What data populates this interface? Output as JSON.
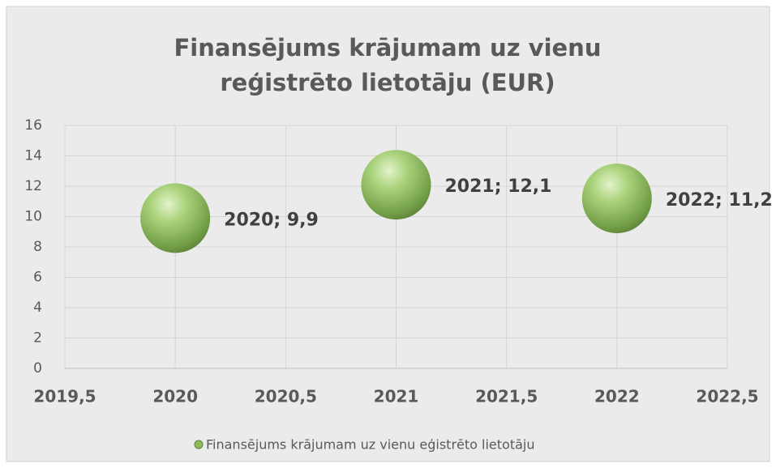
{
  "chart_data": {
    "type": "bubble",
    "title": "Finansējums krājumam uz vienu reģistrēto lietotāju (EUR)",
    "x": [
      2020,
      2021,
      2022
    ],
    "series": [
      {
        "name": "Finansējums krājumam uz vienu eģistrēto lietotāju",
        "color": "#8fbc5a",
        "values": [
          9.9,
          12.1,
          11.2
        ],
        "value_labels": [
          "2020; 9,9",
          "2021; 12,1",
          "2022; 11,2"
        ]
      }
    ],
    "xlim": [
      2019.5,
      2022.5
    ],
    "xticks": [
      {
        "value": 2019.5,
        "label": "2019,5"
      },
      2020,
      {
        "value": 2020.5,
        "label": "2020,5"
      },
      2021,
      {
        "value": 2021.5,
        "label": "2021,5"
      },
      2022,
      {
        "value": 2022.5,
        "label": "2022,5"
      }
    ],
    "ylim": [
      0,
      16
    ],
    "yticks": [
      0,
      2,
      4,
      6,
      8,
      10,
      12,
      14,
      16
    ],
    "grid": true,
    "legend": "bottom"
  }
}
